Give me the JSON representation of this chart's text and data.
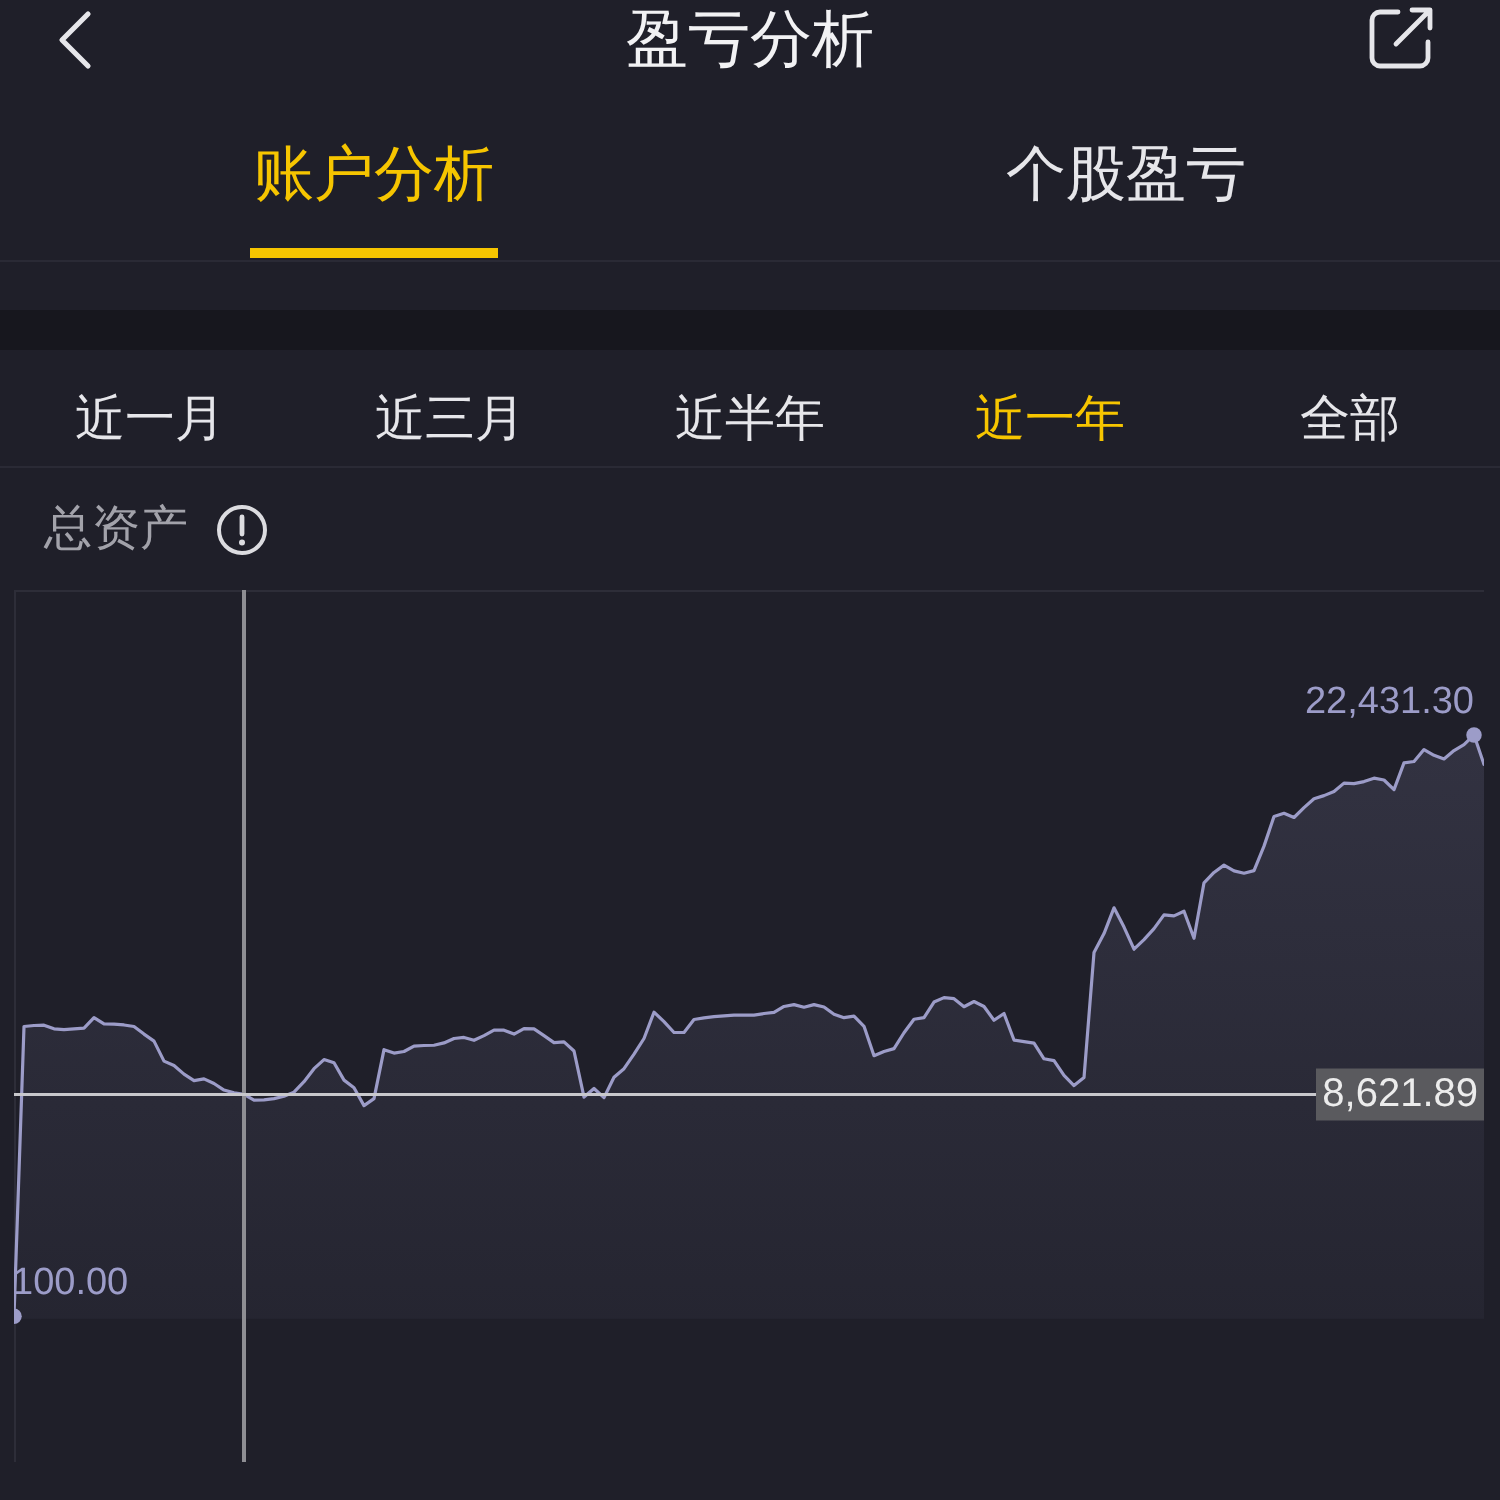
{
  "chart_data": {
    "type": "area",
    "title": "盈亏分析",
    "subtitle": "总资产",
    "annotations": [
      "账户分析",
      "个股盈亏",
      "近一月",
      "近三月",
      "近半年",
      "近一年",
      "全部"
    ],
    "categories": [
      null,
      null,
      null,
      null,
      null,
      null,
      null,
      null,
      null,
      null,
      null,
      null,
      null,
      null,
      null,
      null,
      null,
      null,
      null,
      null,
      null,
      null,
      null,
      null,
      null,
      null,
      null,
      null,
      null,
      null,
      null,
      null,
      null,
      null,
      null,
      null,
      null,
      null,
      null,
      null,
      null,
      null,
      null,
      null,
      null,
      null,
      null,
      null,
      null,
      null,
      null,
      null,
      null,
      null,
      null,
      null,
      null,
      null,
      null,
      null,
      null,
      null,
      null,
      null,
      null,
      null,
      null,
      null,
      null,
      null,
      null,
      null,
      null,
      null,
      null,
      null,
      null,
      null,
      null,
      null,
      null,
      null,
      null,
      null,
      null,
      null,
      null,
      null,
      null,
      null,
      null,
      null,
      null,
      null,
      null,
      null,
      null,
      null,
      null,
      null,
      null,
      null,
      null,
      null,
      null,
      null,
      null,
      null,
      null,
      null,
      null,
      null,
      null,
      null,
      null,
      null,
      null,
      null,
      null,
      null,
      null,
      null,
      null,
      null,
      null,
      null,
      null,
      null,
      null,
      null,
      null,
      null,
      null,
      null,
      null,
      null,
      null,
      null,
      null,
      null,
      null,
      null,
      null,
      null,
      null,
      null,
      null,
      null
    ],
    "values": [
      100,
      11230,
      11270,
      11280,
      11140,
      11110,
      11140,
      11170,
      11570,
      11330,
      11320,
      11290,
      11230,
      10940,
      10670,
      9900,
      9730,
      9400,
      9150,
      9220,
      9040,
      8790,
      8680,
      8621.89,
      8400,
      8410,
      8460,
      8550,
      8710,
      9110,
      9610,
      9960,
      9840,
      9170,
      8880,
      8190,
      8460,
      10340,
      10210,
      10270,
      10480,
      10500,
      10510,
      10600,
      10770,
      10810,
      10700,
      10880,
      11090,
      11090,
      10940,
      11150,
      11140,
      10880,
      10610,
      10640,
      10290,
      8520,
      8850,
      8500,
      9280,
      9610,
      10170,
      10770,
      11780,
      11420,
      11000,
      11000,
      11500,
      11560,
      11610,
      11640,
      11670,
      11670,
      11670,
      11730,
      11770,
      12000,
      12070,
      11970,
      12070,
      11980,
      11700,
      11570,
      11630,
      11240,
      10110,
      10270,
      10380,
      10990,
      11510,
      11570,
      12170,
      12340,
      12300,
      11990,
      12190,
      12000,
      11470,
      11730,
      10710,
      10650,
      10590,
      9990,
      9920,
      9350,
      8960,
      9270,
      14070,
      14800,
      15790,
      15050,
      14200,
      14570,
      14990,
      15520,
      15480,
      15660,
      14620,
      16750,
      17150,
      17430,
      17210,
      17120,
      17220,
      18160,
      19300,
      19420,
      19260,
      19640,
      19980,
      20100,
      20260,
      20580,
      20560,
      20640,
      20770,
      20700,
      20330,
      21360,
      21410,
      21870,
      21650,
      21510,
      21830,
      22060,
      22431.3,
      21300
    ],
    "value_labels": [
      "100.00",
      null,
      null,
      null,
      null,
      null,
      null,
      null,
      null,
      null,
      null,
      null,
      null,
      null,
      null,
      null,
      null,
      null,
      null,
      null,
      null,
      null,
      null,
      null,
      null,
      null,
      null,
      null,
      null,
      null,
      null,
      null,
      null,
      null,
      null,
      null,
      null,
      null,
      null,
      null,
      null,
      null,
      null,
      null,
      null,
      null,
      null,
      null,
      null,
      null,
      null,
      null,
      null,
      null,
      null,
      null,
      null,
      null,
      null,
      null,
      null,
      null,
      null,
      null,
      null,
      null,
      null,
      null,
      null,
      null,
      null,
      null,
      null,
      null,
      null,
      null,
      null,
      null,
      null,
      null,
      null,
      null,
      null,
      null,
      null,
      null,
      null,
      null,
      null,
      null,
      null,
      null,
      null,
      null,
      null,
      null,
      null,
      null,
      null,
      null,
      null,
      null,
      null,
      null,
      null,
      null,
      null,
      null,
      null,
      null,
      null,
      null,
      null,
      null,
      null,
      null,
      null,
      null,
      null,
      null,
      null,
      null,
      null,
      null,
      null,
      null,
      null,
      null,
      null,
      null,
      null,
      null,
      null,
      null,
      null,
      null,
      null,
      null,
      null,
      null,
      null,
      null,
      null,
      null,
      null,
      null,
      "22,431.30",
      null
    ],
    "color": "#9c9cc8",
    "ylim": [
      -5500,
      28000
    ],
    "tick_labels": false,
    "ref_lines": [
      {
        "axis": "y",
        "value": 8621.89,
        "label": "8,621.89",
        "color": "#c8c8cc"
      }
    ]
  }
}
